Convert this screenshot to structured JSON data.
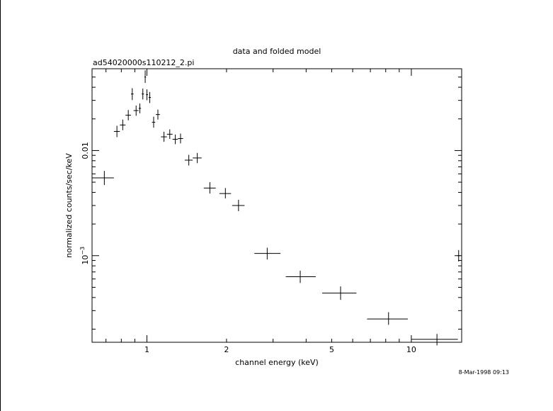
{
  "chart_data": {
    "type": "scatter",
    "title": "data and folded model",
    "subtitle": "ad54020000s110212_2.pi",
    "xlabel": "channel energy (keV)",
    "ylabel": "normalized counts/sec/keV",
    "timestamp": "8-Mar-1998 09:13",
    "x_scale": "log",
    "y_scale": "log",
    "xlim": [
      0.62,
      15.5
    ],
    "ylim": [
      0.00015,
      0.06
    ],
    "x_ticks": [
      {
        "value": 1,
        "label": "1"
      },
      {
        "value": 2,
        "label": "2"
      },
      {
        "value": 5,
        "label": "5"
      },
      {
        "value": 10,
        "label": "10"
      }
    ],
    "y_ticks": [
      {
        "value": 0.01,
        "label": "0.01",
        "exp": ""
      },
      {
        "value": 0.001,
        "label": "10",
        "exp": "−3"
      }
    ],
    "grid": false,
    "colors": {
      "foreground": "#000000",
      "background": "#ffffff"
    },
    "series": [
      {
        "points": [
          {
            "x": 0.69,
            "xlo": 0.62,
            "xhi": 0.75,
            "y": 0.0055,
            "ylo": 0.0047,
            "yhi": 0.0064
          },
          {
            "x": 0.77,
            "xlo": 0.75,
            "xhi": 0.79,
            "y": 0.0152,
            "ylo": 0.0134,
            "yhi": 0.0172
          },
          {
            "x": 0.81,
            "xlo": 0.79,
            "xhi": 0.83,
            "y": 0.0175,
            "ylo": 0.0156,
            "yhi": 0.0197
          },
          {
            "x": 0.85,
            "xlo": 0.83,
            "xhi": 0.87,
            "y": 0.0217,
            "ylo": 0.0194,
            "yhi": 0.0243
          },
          {
            "x": 0.88,
            "xlo": 0.87,
            "xhi": 0.89,
            "y": 0.0345,
            "ylo": 0.0302,
            "yhi": 0.0392
          },
          {
            "x": 0.91,
            "xlo": 0.89,
            "xhi": 0.93,
            "y": 0.024,
            "ylo": 0.0214,
            "yhi": 0.0268
          },
          {
            "x": 0.94,
            "xlo": 0.93,
            "xhi": 0.95,
            "y": 0.0252,
            "ylo": 0.0226,
            "yhi": 0.028
          },
          {
            "x": 0.965,
            "xlo": 0.955,
            "xhi": 0.975,
            "y": 0.0345,
            "ylo": 0.0306,
            "yhi": 0.0388
          },
          {
            "x": 0.985,
            "xlo": 0.978,
            "xhi": 0.992,
            "y": 0.05,
            "ylo": 0.044,
            "yhi": 0.058
          },
          {
            "x": 1.0,
            "xlo": 0.992,
            "xhi": 1.01,
            "y": 0.034,
            "ylo": 0.0301,
            "yhi": 0.0382
          },
          {
            "x": 1.025,
            "xlo": 1.015,
            "xhi": 1.035,
            "y": 0.032,
            "ylo": 0.0283,
            "yhi": 0.036
          },
          {
            "x": 1.06,
            "xlo": 1.045,
            "xhi": 1.075,
            "y": 0.0186,
            "ylo": 0.0165,
            "yhi": 0.021
          },
          {
            "x": 1.1,
            "xlo": 1.08,
            "xhi": 1.12,
            "y": 0.022,
            "ylo": 0.0197,
            "yhi": 0.0245
          },
          {
            "x": 1.16,
            "xlo": 1.13,
            "xhi": 1.19,
            "y": 0.0135,
            "ylo": 0.0121,
            "yhi": 0.0151
          },
          {
            "x": 1.22,
            "xlo": 1.19,
            "xhi": 1.25,
            "y": 0.0143,
            "ylo": 0.0129,
            "yhi": 0.0159
          },
          {
            "x": 1.28,
            "xlo": 1.25,
            "xhi": 1.31,
            "y": 0.0128,
            "ylo": 0.0115,
            "yhi": 0.0142
          },
          {
            "x": 1.34,
            "xlo": 1.31,
            "xhi": 1.37,
            "y": 0.013,
            "ylo": 0.0117,
            "yhi": 0.0145
          },
          {
            "x": 1.44,
            "xlo": 1.39,
            "xhi": 1.49,
            "y": 0.0081,
            "ylo": 0.0072,
            "yhi": 0.0091
          },
          {
            "x": 1.55,
            "xlo": 1.49,
            "xhi": 1.61,
            "y": 0.0085,
            "ylo": 0.0076,
            "yhi": 0.0095
          },
          {
            "x": 1.73,
            "xlo": 1.64,
            "xhi": 1.82,
            "y": 0.0044,
            "ylo": 0.0039,
            "yhi": 0.005
          },
          {
            "x": 1.98,
            "xlo": 1.88,
            "xhi": 2.08,
            "y": 0.0039,
            "ylo": 0.0035,
            "yhi": 0.0044
          },
          {
            "x": 2.22,
            "xlo": 2.1,
            "xhi": 2.34,
            "y": 0.003,
            "ylo": 0.00265,
            "yhi": 0.0034
          },
          {
            "x": 2.85,
            "xlo": 2.55,
            "xhi": 3.2,
            "y": 0.00105,
            "ylo": 0.00092,
            "yhi": 0.00119
          },
          {
            "x": 3.8,
            "xlo": 3.35,
            "xhi": 4.35,
            "y": 0.00063,
            "ylo": 0.00055,
            "yhi": 0.00072
          },
          {
            "x": 5.4,
            "xlo": 4.6,
            "xhi": 6.2,
            "y": 0.00044,
            "ylo": 0.00038,
            "yhi": 0.00051
          },
          {
            "x": 8.2,
            "xlo": 6.8,
            "xhi": 9.7,
            "y": 0.00025,
            "ylo": 0.00022,
            "yhi": 0.00029
          },
          {
            "x": 12.5,
            "xlo": 10.0,
            "xhi": 15.0,
            "y": 0.00016,
            "ylo": 0.00014,
            "yhi": 0.00018
          },
          {
            "x": 15.1,
            "xlo": 14.9,
            "xhi": 15.3,
            "y": 0.001,
            "ylo": 0.00088,
            "yhi": 0.00113
          }
        ]
      }
    ]
  }
}
